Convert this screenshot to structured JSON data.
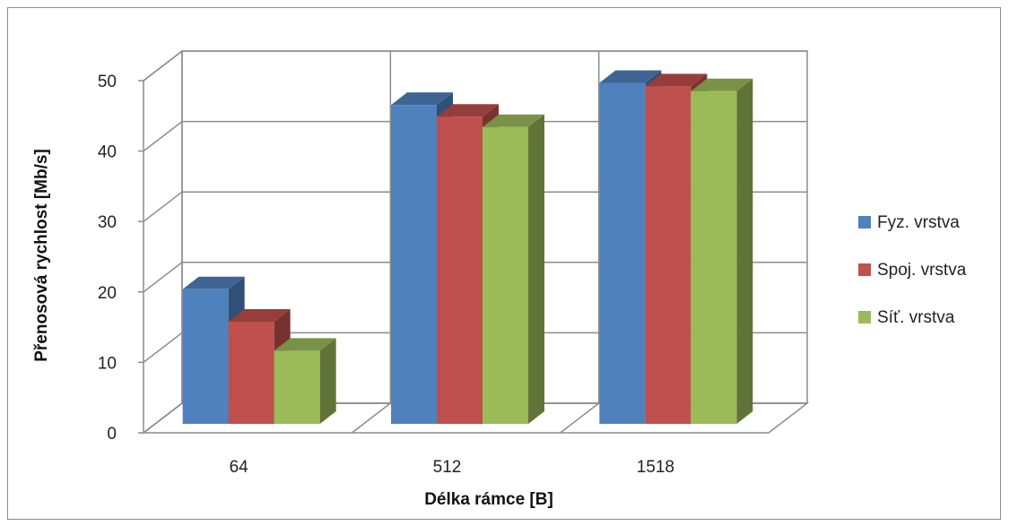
{
  "chart_data": {
    "type": "bar",
    "variant": "3d-clustered-column",
    "categories": [
      "64",
      "512",
      "1518"
    ],
    "series": [
      {
        "name": "Fyz. vrstva",
        "values": [
          19.5,
          46.2,
          49.4
        ],
        "color": "#4F81BD"
      },
      {
        "name": "Spoj. vrstva",
        "values": [
          14.8,
          44.5,
          48.9
        ],
        "color": "#C0504D"
      },
      {
        "name": "Síť. vrstva",
        "values": [
          10.6,
          43.0,
          48.2
        ],
        "color": "#9BBB59"
      }
    ],
    "yticks": [
      "0",
      "10",
      "20",
      "30",
      "40",
      "50"
    ],
    "ylim": [
      0,
      50
    ],
    "xlabel": "Délka rámce [B]",
    "ylabel": "Přenosová rychlost [Mb/s]",
    "grid": true,
    "legend_position": "right"
  }
}
